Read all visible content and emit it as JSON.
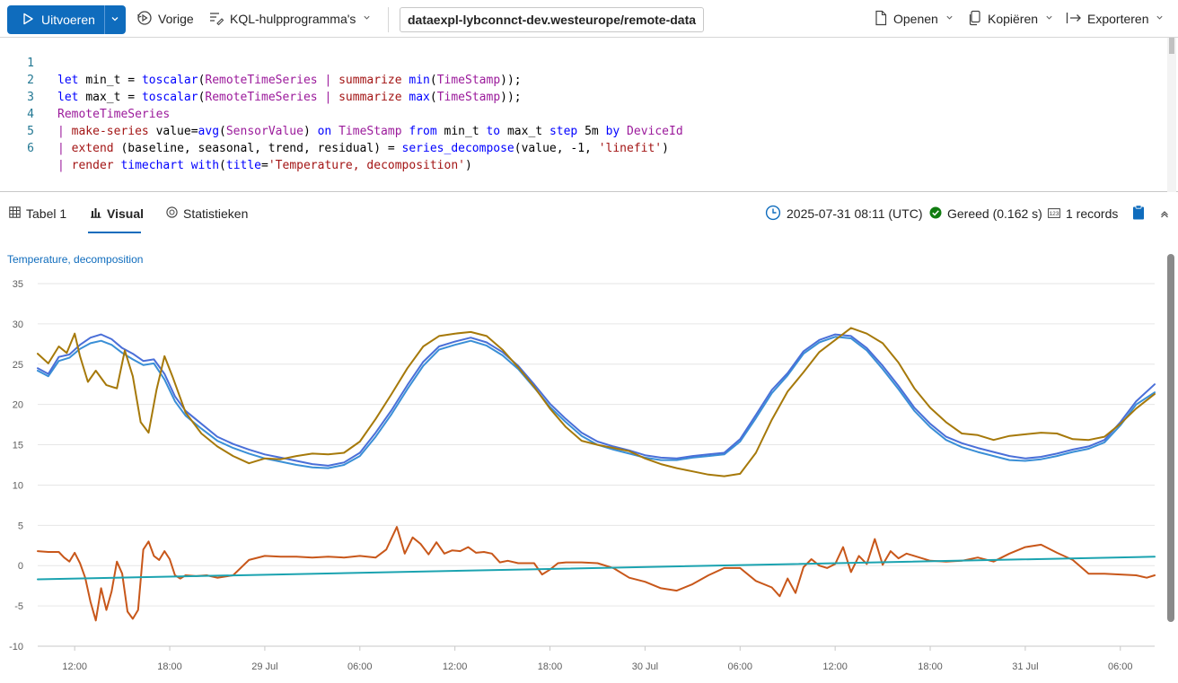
{
  "toolbar": {
    "run_label": "Uitvoeren",
    "previous_label": "Vorige",
    "kql_tools_label": "KQL-hulpprogramma's",
    "cluster_path": "dataexpl-lybconnct-dev.westeurope/remote-data",
    "open_label": "Openen",
    "copy_label": "Kopiëren",
    "export_label": "Exporteren"
  },
  "editor": {
    "line_numbers": [
      "1",
      "2",
      "3",
      "4",
      "5",
      "6"
    ],
    "lines": [
      "let min_t = toscalar(RemoteTimeSeries | summarize min(TimeStamp));",
      "let max_t = toscalar(RemoteTimeSeries | summarize max(TimeStamp));",
      "RemoteTimeSeries",
      "| make-series value=avg(SensorValue) on TimeStamp from min_t to max_t step 5m by DeviceId",
      "| extend (baseline, seasonal, trend, residual) = series_decompose(value, -1, 'linefit')",
      "| render timechart with(title='Temperature, decomposition')"
    ]
  },
  "results": {
    "tabs": [
      "Tabel 1",
      "Visual",
      "Statistieken"
    ],
    "active_tab": "Visual",
    "timestamp": "2025-07-31 08:11 (UTC)",
    "status": "Gereed (0.162 s)",
    "records": "1 records"
  },
  "colors": {
    "accent": "#0f6cbd",
    "value": "#4a6fd8",
    "baseline": "#3a8fd6",
    "seasonal": "#a6790a",
    "trend": "#1ba3b0",
    "residual": "#c8571a",
    "ready": "#107c10"
  },
  "chart_data": {
    "type": "line",
    "title": "Temperature, decomposition",
    "xlabel": "",
    "ylabel": "",
    "ylim": [
      -10,
      35
    ],
    "y_ticks": [
      "35",
      "30",
      "25",
      "20",
      "15",
      "10",
      "5",
      "0",
      "-5",
      "-10"
    ],
    "x_range": [
      "2025-07-28 09:40",
      "2025-07-31 08:10"
    ],
    "x_ticks": [
      "12:00",
      "18:00",
      "29 Jul",
      "06:00",
      "12:00",
      "18:00",
      "30 Jul",
      "06:00",
      "12:00",
      "18:00",
      "31 Jul",
      "06:00"
    ],
    "x_tick_times": [
      "2025-07-28 12:00",
      "2025-07-28 18:00",
      "2025-07-29 00:00",
      "2025-07-29 06:00",
      "2025-07-29 12:00",
      "2025-07-29 18:00",
      "2025-07-30 00:00",
      "2025-07-30 06:00",
      "2025-07-30 12:00",
      "2025-07-30 18:00",
      "2025-07-31 00:00",
      "2025-07-31 06:00"
    ],
    "grid": true,
    "series": [
      {
        "key": "value",
        "x": [
          "2025-07-28 09:40",
          "2025-07-28 10:20",
          "2025-07-28 11:00",
          "2025-07-28 11:40",
          "2025-07-28 12:20",
          "2025-07-28 13:00",
          "2025-07-28 13:40",
          "2025-07-28 14:20",
          "2025-07-28 15:00",
          "2025-07-28 15:40",
          "2025-07-28 16:20",
          "2025-07-28 17:00",
          "2025-07-28 17:40",
          "2025-07-28 18:20",
          "2025-07-28 19:00",
          "2025-07-28 20:00",
          "2025-07-28 21:00",
          "2025-07-28 22:00",
          "2025-07-28 23:00",
          "2025-07-29 00:00",
          "2025-07-29 01:00",
          "2025-07-29 02:00",
          "2025-07-29 03:00",
          "2025-07-29 04:00",
          "2025-07-29 05:00",
          "2025-07-29 06:00",
          "2025-07-29 07:00",
          "2025-07-29 08:00",
          "2025-07-29 09:00",
          "2025-07-29 10:00",
          "2025-07-29 11:00",
          "2025-07-29 12:00",
          "2025-07-29 13:00",
          "2025-07-29 14:00",
          "2025-07-29 15:00",
          "2025-07-29 16:00",
          "2025-07-29 17:00",
          "2025-07-29 18:00",
          "2025-07-29 19:00",
          "2025-07-29 20:00",
          "2025-07-29 21:00",
          "2025-07-29 22:00",
          "2025-07-29 23:00",
          "2025-07-30 00:00",
          "2025-07-30 01:00",
          "2025-07-30 02:00",
          "2025-07-30 03:00",
          "2025-07-30 04:00",
          "2025-07-30 05:00",
          "2025-07-30 06:00",
          "2025-07-30 07:00",
          "2025-07-30 08:00",
          "2025-07-30 09:00",
          "2025-07-30 10:00",
          "2025-07-30 11:00",
          "2025-07-30 12:00",
          "2025-07-30 13:00",
          "2025-07-30 14:00",
          "2025-07-30 15:00",
          "2025-07-30 16:00",
          "2025-07-30 17:00",
          "2025-07-30 18:00",
          "2025-07-30 19:00",
          "2025-07-30 20:00",
          "2025-07-30 21:00",
          "2025-07-30 22:00",
          "2025-07-30 23:00",
          "2025-07-31 00:00",
          "2025-07-31 01:00",
          "2025-07-31 02:00",
          "2025-07-31 03:00",
          "2025-07-31 04:00",
          "2025-07-31 05:00",
          "2025-07-31 06:00",
          "2025-07-31 07:00",
          "2025-07-31 08:10"
        ],
        "values": [
          24.5,
          23.8,
          25.9,
          26.2,
          27.4,
          28.3,
          28.7,
          28.1,
          27.0,
          26.3,
          25.4,
          25.6,
          23.8,
          21.0,
          19.2,
          17.6,
          16.0,
          15.1,
          14.4,
          13.8,
          13.4,
          13.0,
          12.6,
          12.4,
          12.8,
          14.0,
          16.5,
          19.3,
          22.4,
          25.3,
          27.2,
          27.8,
          28.3,
          27.7,
          26.5,
          24.8,
          22.5,
          20.1,
          18.2,
          16.5,
          15.4,
          14.8,
          14.3,
          13.7,
          13.4,
          13.3,
          13.6,
          13.8,
          14.0,
          15.7,
          18.7,
          21.8,
          23.9,
          26.6,
          28.0,
          28.7,
          28.5,
          27.0,
          24.8,
          22.3,
          19.6,
          17.6,
          16.0,
          15.2,
          14.6,
          14.1,
          13.6,
          13.3,
          13.5,
          13.9,
          14.4,
          14.8,
          15.6,
          17.8,
          20.4,
          22.5
        ]
      },
      {
        "key": "baseline",
        "x": [
          "2025-07-28 09:40",
          "2025-07-28 10:20",
          "2025-07-28 11:00",
          "2025-07-28 11:40",
          "2025-07-28 12:20",
          "2025-07-28 13:00",
          "2025-07-28 13:40",
          "2025-07-28 14:20",
          "2025-07-28 15:00",
          "2025-07-28 15:40",
          "2025-07-28 16:20",
          "2025-07-28 17:00",
          "2025-07-28 17:40",
          "2025-07-28 18:20",
          "2025-07-28 19:00",
          "2025-07-28 20:00",
          "2025-07-28 21:00",
          "2025-07-28 22:00",
          "2025-07-28 23:00",
          "2025-07-29 00:00",
          "2025-07-29 01:00",
          "2025-07-29 02:00",
          "2025-07-29 03:00",
          "2025-07-29 04:00",
          "2025-07-29 05:00",
          "2025-07-29 06:00",
          "2025-07-29 07:00",
          "2025-07-29 08:00",
          "2025-07-29 09:00",
          "2025-07-29 10:00",
          "2025-07-29 11:00",
          "2025-07-29 12:00",
          "2025-07-29 13:00",
          "2025-07-29 14:00",
          "2025-07-29 15:00",
          "2025-07-29 16:00",
          "2025-07-29 17:00",
          "2025-07-29 18:00",
          "2025-07-29 19:00",
          "2025-07-29 20:00",
          "2025-07-29 21:00",
          "2025-07-29 22:00",
          "2025-07-29 23:00",
          "2025-07-30 00:00",
          "2025-07-30 01:00",
          "2025-07-30 02:00",
          "2025-07-30 03:00",
          "2025-07-30 04:00",
          "2025-07-30 05:00",
          "2025-07-30 06:00",
          "2025-07-30 07:00",
          "2025-07-30 08:00",
          "2025-07-30 09:00",
          "2025-07-30 10:00",
          "2025-07-30 11:00",
          "2025-07-30 12:00",
          "2025-07-30 13:00",
          "2025-07-30 14:00",
          "2025-07-30 15:00",
          "2025-07-30 16:00",
          "2025-07-30 17:00",
          "2025-07-30 18:00",
          "2025-07-30 19:00",
          "2025-07-30 20:00",
          "2025-07-30 21:00",
          "2025-07-30 22:00",
          "2025-07-30 23:00",
          "2025-07-31 00:00",
          "2025-07-31 01:00",
          "2025-07-31 02:00",
          "2025-07-31 03:00",
          "2025-07-31 04:00",
          "2025-07-31 05:00",
          "2025-07-31 06:00",
          "2025-07-31 07:00",
          "2025-07-31 08:10"
        ],
        "values": [
          24.2,
          23.5,
          25.4,
          25.8,
          26.9,
          27.6,
          27.9,
          27.4,
          26.4,
          25.6,
          24.9,
          25.1,
          23.1,
          20.4,
          18.6,
          17.0,
          15.5,
          14.6,
          13.9,
          13.3,
          12.9,
          12.5,
          12.2,
          12.1,
          12.5,
          13.6,
          16.0,
          18.8,
          21.9,
          24.8,
          26.8,
          27.4,
          27.9,
          27.3,
          26.1,
          24.4,
          22.1,
          19.7,
          17.8,
          16.1,
          15.0,
          14.4,
          13.9,
          13.4,
          13.1,
          13.1,
          13.4,
          13.6,
          13.8,
          15.4,
          18.3,
          21.4,
          23.6,
          26.3,
          27.7,
          28.4,
          28.2,
          26.7,
          24.4,
          21.9,
          19.2,
          17.2,
          15.6,
          14.7,
          14.1,
          13.6,
          13.1,
          13.0,
          13.2,
          13.6,
          14.1,
          14.5,
          15.3,
          17.4,
          20.0,
          21.5
        ]
      },
      {
        "key": "seasonal",
        "x": [
          "2025-07-28 09:40",
          "2025-07-28 10:20",
          "2025-07-28 11:00",
          "2025-07-28 11:30",
          "2025-07-28 12:00",
          "2025-07-28 12:20",
          "2025-07-28 12:50",
          "2025-07-28 13:20",
          "2025-07-28 14:00",
          "2025-07-28 14:40",
          "2025-07-28 15:10",
          "2025-07-28 15:40",
          "2025-07-28 16:10",
          "2025-07-28 16:40",
          "2025-07-28 17:10",
          "2025-07-28 17:40",
          "2025-07-28 18:10",
          "2025-07-28 19:00",
          "2025-07-28 20:00",
          "2025-07-28 21:00",
          "2025-07-28 22:00",
          "2025-07-28 23:00",
          "2025-07-29 00:00",
          "2025-07-29 01:00",
          "2025-07-29 02:00",
          "2025-07-29 03:00",
          "2025-07-29 04:00",
          "2025-07-29 05:00",
          "2025-07-29 06:00",
          "2025-07-29 07:00",
          "2025-07-29 08:00",
          "2025-07-29 09:00",
          "2025-07-29 10:00",
          "2025-07-29 11:00",
          "2025-07-29 12:00",
          "2025-07-29 13:00",
          "2025-07-29 14:00",
          "2025-07-29 15:00",
          "2025-07-29 16:00",
          "2025-07-29 17:00",
          "2025-07-29 18:00",
          "2025-07-29 19:00",
          "2025-07-29 20:00",
          "2025-07-29 21:00",
          "2025-07-29 22:00",
          "2025-07-29 23:00",
          "2025-07-30 00:00",
          "2025-07-30 01:00",
          "2025-07-30 02:00",
          "2025-07-30 03:00",
          "2025-07-30 04:00",
          "2025-07-30 05:00",
          "2025-07-30 06:00",
          "2025-07-30 07:00",
          "2025-07-30 08:00",
          "2025-07-30 09:00",
          "2025-07-30 10:00",
          "2025-07-30 11:00",
          "2025-07-30 12:00",
          "2025-07-30 13:00",
          "2025-07-30 14:00",
          "2025-07-30 15:00",
          "2025-07-30 16:00",
          "2025-07-30 17:00",
          "2025-07-30 18:00",
          "2025-07-30 19:00",
          "2025-07-30 20:00",
          "2025-07-30 21:00",
          "2025-07-30 22:00",
          "2025-07-30 23:00",
          "2025-07-31 00:00",
          "2025-07-31 01:00",
          "2025-07-31 02:00",
          "2025-07-31 03:00",
          "2025-07-31 04:00",
          "2025-07-31 05:00",
          "2025-07-31 06:00",
          "2025-07-31 07:00",
          "2025-07-31 08:10"
        ],
        "values": [
          26.3,
          25.1,
          27.2,
          26.4,
          28.8,
          26.0,
          22.8,
          24.2,
          22.4,
          22.0,
          26.7,
          23.5,
          17.8,
          16.5,
          21.8,
          26.0,
          23.5,
          19.0,
          16.4,
          14.8,
          13.6,
          12.7,
          13.3,
          13.2,
          13.6,
          13.9,
          13.8,
          14.0,
          15.4,
          18.2,
          21.3,
          24.5,
          27.2,
          28.5,
          28.8,
          29.0,
          28.5,
          26.8,
          24.6,
          22.2,
          19.5,
          17.2,
          15.5,
          15.0,
          14.6,
          14.2,
          13.3,
          12.6,
          12.1,
          11.7,
          11.3,
          11.1,
          11.4,
          14.0,
          18.1,
          21.6,
          24.0,
          26.5,
          28.0,
          29.5,
          28.8,
          27.6,
          25.2,
          22.0,
          19.6,
          17.8,
          16.4,
          16.2,
          15.6,
          16.1,
          16.3,
          16.5,
          16.4,
          15.7,
          15.6,
          16.0,
          17.6,
          19.5,
          21.3
        ]
      },
      {
        "key": "trend",
        "x": [
          "2025-07-28 09:40",
          "2025-07-31 08:10"
        ],
        "values": [
          -1.7,
          1.1
        ]
      },
      {
        "key": "residual",
        "x": [
          "2025-07-28 09:40",
          "2025-07-28 10:20",
          "2025-07-28 11:00",
          "2025-07-28 11:20",
          "2025-07-28 11:40",
          "2025-07-28 12:00",
          "2025-07-28 12:20",
          "2025-07-28 12:40",
          "2025-07-28 13:00",
          "2025-07-28 13:20",
          "2025-07-28 13:40",
          "2025-07-28 14:00",
          "2025-07-28 14:20",
          "2025-07-28 14:40",
          "2025-07-28 15:00",
          "2025-07-28 15:20",
          "2025-07-28 15:40",
          "2025-07-28 16:00",
          "2025-07-28 16:20",
          "2025-07-28 16:40",
          "2025-07-28 17:00",
          "2025-07-28 17:20",
          "2025-07-28 17:40",
          "2025-07-28 18:00",
          "2025-07-28 18:20",
          "2025-07-28 18:40",
          "2025-07-28 19:00",
          "2025-07-28 19:40",
          "2025-07-28 20:20",
          "2025-07-28 21:00",
          "2025-07-28 22:00",
          "2025-07-28 23:00",
          "2025-07-29 00:00",
          "2025-07-29 01:00",
          "2025-07-29 02:00",
          "2025-07-29 03:00",
          "2025-07-29 04:00",
          "2025-07-29 05:00",
          "2025-07-29 06:00",
          "2025-07-29 07:00",
          "2025-07-29 07:40",
          "2025-07-29 08:20",
          "2025-07-29 08:50",
          "2025-07-29 09:20",
          "2025-07-29 09:50",
          "2025-07-29 10:20",
          "2025-07-29 10:50",
          "2025-07-29 11:20",
          "2025-07-29 11:50",
          "2025-07-29 12:20",
          "2025-07-29 12:50",
          "2025-07-29 13:20",
          "2025-07-29 13:50",
          "2025-07-29 14:20",
          "2025-07-29 14:50",
          "2025-07-29 15:20",
          "2025-07-29 16:00",
          "2025-07-29 17:00",
          "2025-07-29 17:30",
          "2025-07-29 18:00",
          "2025-07-29 18:30",
          "2025-07-29 19:00",
          "2025-07-29 20:00",
          "2025-07-29 21:00",
          "2025-07-29 22:00",
          "2025-07-29 23:00",
          "2025-07-30 00:00",
          "2025-07-30 01:00",
          "2025-07-30 02:00",
          "2025-07-30 03:00",
          "2025-07-30 04:00",
          "2025-07-30 05:00",
          "2025-07-30 06:00",
          "2025-07-30 07:00",
          "2025-07-30 08:00",
          "2025-07-30 08:30",
          "2025-07-30 09:00",
          "2025-07-30 09:30",
          "2025-07-30 10:00",
          "2025-07-30 10:30",
          "2025-07-30 11:00",
          "2025-07-30 11:30",
          "2025-07-30 12:00",
          "2025-07-30 12:30",
          "2025-07-30 13:00",
          "2025-07-30 13:30",
          "2025-07-30 14:00",
          "2025-07-30 14:30",
          "2025-07-30 15:00",
          "2025-07-30 15:30",
          "2025-07-30 16:00",
          "2025-07-30 16:30",
          "2025-07-30 17:00",
          "2025-07-30 18:00",
          "2025-07-30 19:00",
          "2025-07-30 20:00",
          "2025-07-30 21:00",
          "2025-07-30 22:00",
          "2025-07-30 23:00",
          "2025-07-31 00:00",
          "2025-07-31 01:00",
          "2025-07-31 02:00",
          "2025-07-31 03:00",
          "2025-07-31 04:00",
          "2025-07-31 05:00",
          "2025-07-31 06:00",
          "2025-07-31 07:00",
          "2025-07-31 07:40",
          "2025-07-31 08:10"
        ],
        "values": [
          1.8,
          1.7,
          1.7,
          1.0,
          0.5,
          1.6,
          0.3,
          -1.5,
          -4.5,
          -6.8,
          -2.8,
          -5.5,
          -3.2,
          0.5,
          -1.0,
          -5.7,
          -6.6,
          -5.5,
          2.0,
          3.0,
          1.2,
          0.7,
          1.8,
          0.8,
          -1.2,
          -1.6,
          -1.2,
          -1.3,
          -1.2,
          -1.5,
          -1.2,
          0.7,
          1.2,
          1.1,
          1.1,
          1.0,
          1.1,
          1.0,
          1.2,
          1.0,
          2.0,
          4.8,
          1.5,
          3.5,
          2.7,
          1.4,
          2.9,
          1.5,
          1.9,
          1.8,
          2.3,
          1.6,
          1.7,
          1.5,
          0.4,
          0.6,
          0.3,
          0.3,
          -1.1,
          -0.5,
          0.3,
          0.4,
          0.4,
          0.3,
          -0.3,
          -1.5,
          -2.0,
          -2.8,
          -3.1,
          -2.3,
          -1.2,
          -0.3,
          -0.3,
          -1.9,
          -2.7,
          -3.8,
          -1.6,
          -3.4,
          -0.2,
          0.8,
          0.0,
          -0.3,
          0.2,
          2.3,
          -0.8,
          1.2,
          0.2,
          3.3,
          0.1,
          1.8,
          0.9,
          1.5,
          1.2,
          0.6,
          0.5,
          0.6,
          1.0,
          0.5,
          1.5,
          2.3,
          2.6,
          1.6,
          0.7,
          -1.0,
          -1.0,
          -1.1,
          -1.2,
          -1.5,
          -1.2
        ]
      }
    ]
  }
}
